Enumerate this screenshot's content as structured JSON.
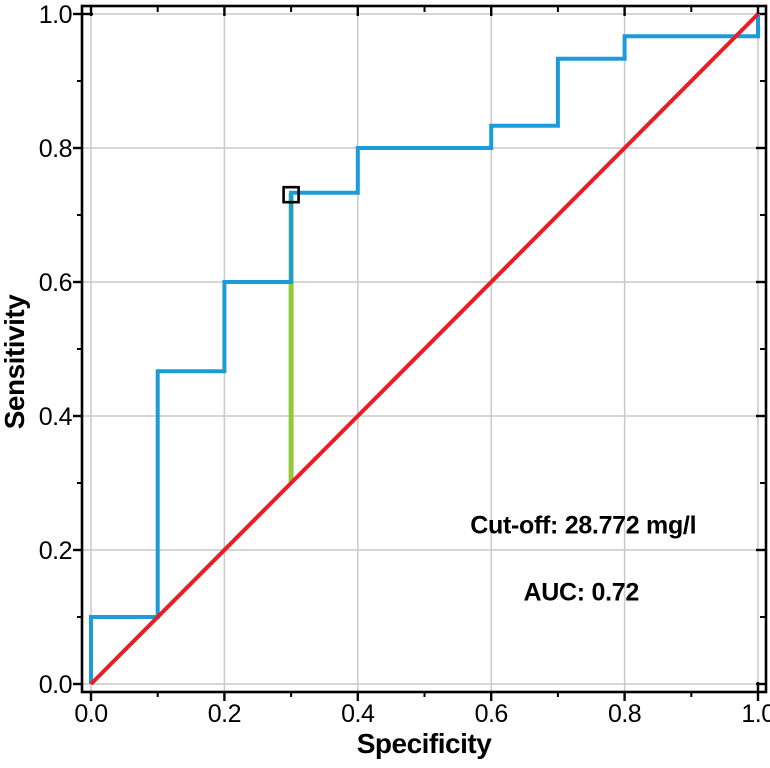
{
  "figure": {
    "background": "#ffffff",
    "frame_color": "#000000"
  },
  "chart_data": {
    "type": "line",
    "subtype": "roc-step-curve",
    "title": "",
    "xlabel": "Specificity",
    "ylabel": "Sensitivity",
    "xlim": [
      0,
      1
    ],
    "ylim": [
      0,
      1
    ],
    "legend": "none",
    "grid": {
      "show": true,
      "color": "#C9C9C9",
      "positions": [
        0,
        0.2,
        0.4,
        0.6,
        0.8,
        1.0
      ]
    },
    "ticks": {
      "major": [
        0,
        0.2,
        0.4,
        0.6,
        0.8,
        1.0
      ],
      "minor": [
        0.1,
        0.3,
        0.5,
        0.7,
        0.9
      ],
      "labels": [
        "0.0",
        "0.2",
        "0.4",
        "0.6",
        "0.8",
        "1.0"
      ]
    },
    "series": [
      {
        "name": "cutoff-indicator",
        "color": "#96C83C",
        "width": 5,
        "points": [
          [
            0.3,
            0.3
          ],
          [
            0.3,
            0.7333
          ]
        ]
      },
      {
        "name": "roc-curve",
        "color": "#1B9CD9",
        "width": 4,
        "points": [
          [
            0,
            0
          ],
          [
            0,
            0.1
          ],
          [
            0.1,
            0.1
          ],
          [
            0.1,
            0.4667
          ],
          [
            0.2,
            0.4667
          ],
          [
            0.2,
            0.6
          ],
          [
            0.3,
            0.6
          ],
          [
            0.3,
            0.7333
          ],
          [
            0.4,
            0.7333
          ],
          [
            0.4,
            0.8
          ],
          [
            0.6,
            0.8
          ],
          [
            0.6,
            0.8333
          ],
          [
            0.7,
            0.8333
          ],
          [
            0.7,
            0.9333
          ],
          [
            0.8,
            0.9333
          ],
          [
            0.8,
            0.9667
          ],
          [
            1,
            0.9667
          ],
          [
            1,
            1
          ]
        ]
      },
      {
        "name": "reference-diagonal",
        "color": "#EC1C24",
        "width": 4,
        "points": [
          [
            0,
            0
          ],
          [
            1,
            1
          ]
        ]
      }
    ],
    "marker": {
      "shape": "open-square",
      "x": 0.3,
      "y": 0.7333,
      "size": 15,
      "stroke": "#000000"
    },
    "annotations": [
      {
        "name": "cutoff-label",
        "text": "Cut-off: 28.772 mg/l",
        "x": 0.738,
        "y": 0.238
      },
      {
        "name": "auc-label",
        "text": "AUC: 0.72",
        "x": 0.735,
        "y": 0.138
      }
    ]
  }
}
